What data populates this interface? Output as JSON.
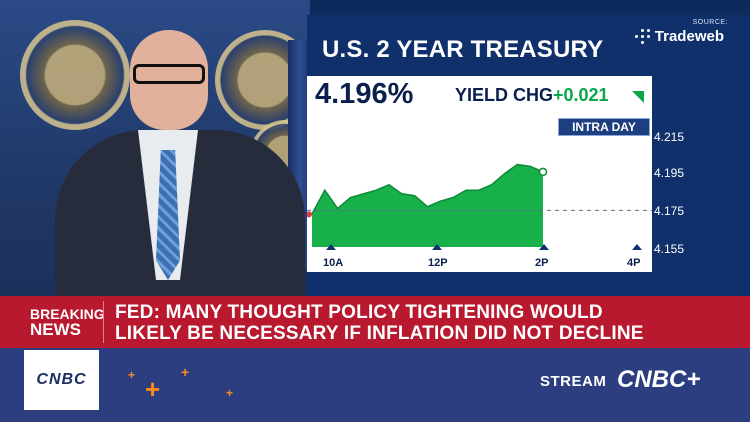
{
  "graphic": {
    "source_label": "SOURCE:",
    "source_name": "Tradeweb",
    "title": "U.S. 2 YEAR TREASURY",
    "yield": "4.196%",
    "yield_chg_label": "YIELD CHG",
    "yield_chg": "+0.021",
    "intraday_label": "INTRA DAY",
    "accent_green": "#0aa64a"
  },
  "chart_data": {
    "type": "area",
    "title": "U.S. 2 YEAR TREASURY",
    "ylim": [
      4.155,
      4.215
    ],
    "yticks": [
      "4.215",
      "4.195",
      "4.175",
      "4.155"
    ],
    "xticks": [
      "10A",
      "12P",
      "2P",
      "4P"
    ],
    "reference_line": 4.175,
    "x": [
      "9:30",
      "9:45",
      "10:00",
      "10:15",
      "10:30",
      "10:45",
      "11:00",
      "11:15",
      "11:30",
      "11:45",
      "12:00",
      "12:15",
      "12:30",
      "12:45",
      "1:00",
      "1:15",
      "1:30",
      "1:45",
      "2:00"
    ],
    "values": [
      4.173,
      4.186,
      4.176,
      4.182,
      4.184,
      4.186,
      4.189,
      4.184,
      4.183,
      4.177,
      4.18,
      4.182,
      4.186,
      4.186,
      4.189,
      4.195,
      4.2,
      4.199,
      4.196
    ]
  },
  "breaking": {
    "label_line1": "BREAKING",
    "label_line2": "NEWS",
    "headline_line1": "FED: MANY THOUGHT POLICY TIGHTENING WOULD",
    "headline_line2": "LIKELY BE NECESSARY IF INFLATION DID NOT DECLINE"
  },
  "footer": {
    "logo": "CNBC",
    "stream_label": "STREAM",
    "stream_brand": "CNBC+"
  }
}
